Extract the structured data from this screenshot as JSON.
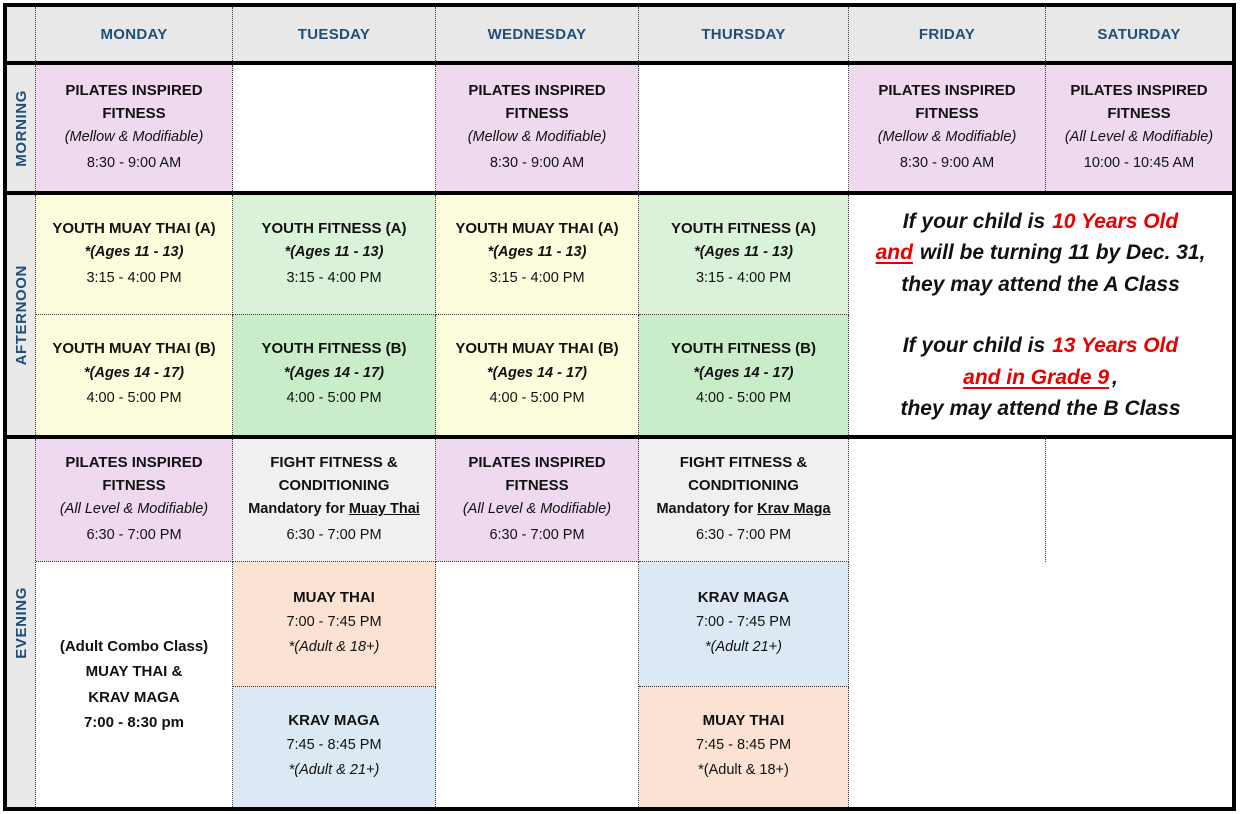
{
  "header": {
    "days": [
      "MONDAY",
      "TUESDAY",
      "WEDNESDAY",
      "THURSDAY",
      "FRIDAY",
      "SATURDAY"
    ]
  },
  "bands": {
    "morning": "MORNING",
    "afternoon": "AFTERNOON",
    "evening": "EVENING"
  },
  "cells": {
    "morning": {
      "mon": {
        "title": "PILATES INSPIRED FITNESS",
        "sub": "(Mellow & Modifiable)",
        "time": "8:30 - 9:00 AM"
      },
      "wed": {
        "title": "PILATES INSPIRED FITNESS",
        "sub": "(Mellow & Modifiable)",
        "time": "8:30 - 9:00 AM"
      },
      "fri": {
        "title": "PILATES INSPIRED FITNESS",
        "sub": "(Mellow & Modifiable)",
        "time": "8:30 - 9:00 AM"
      },
      "sat": {
        "title": "PILATES INSPIRED FITNESS",
        "sub": "(All Level & Modifiable)",
        "time": "10:00 - 10:45 AM"
      }
    },
    "afternoon": {
      "mon_a": {
        "title": "YOUTH MUAY THAI (A)",
        "ages": "*(Ages 11 - 13)",
        "time": "3:15 - 4:00 PM"
      },
      "mon_b": {
        "title": "YOUTH MUAY THAI (B)",
        "ages": "*(Ages 14 - 17)",
        "time": "4:00 - 5:00 PM"
      },
      "tue_a": {
        "title": "YOUTH FITNESS (A)",
        "ages": "*(Ages 11 - 13)",
        "time": "3:15 - 4:00 PM"
      },
      "tue_b": {
        "title": "YOUTH FITNESS (B)",
        "ages": "*(Ages 14 - 17)",
        "time": "4:00 - 5:00 PM"
      },
      "wed_a": {
        "title": "YOUTH MUAY THAI (A)",
        "ages": "*(Ages 11 - 13)",
        "time": "3:15 - 4:00 PM"
      },
      "wed_b": {
        "title": "YOUTH MUAY THAI (B)",
        "ages": "*(Ages 14 - 17)",
        "time": "4:00 - 5:00 PM"
      },
      "thu_a": {
        "title": "YOUTH FITNESS (A)",
        "ages": "*(Ages 11 - 13)",
        "time": "3:15 - 4:00 PM"
      },
      "thu_b": {
        "title": "YOUTH FITNESS (B)",
        "ages": "*(Ages 14 - 17)",
        "time": "4:00 - 5:00 PM"
      }
    },
    "evening": {
      "mon_pilates": {
        "title": "PILATES INSPIRED FITNESS",
        "sub": "(All Level & Modifiable)",
        "time": "6:30 - 7:00 PM"
      },
      "wed_pilates": {
        "title": "PILATES INSPIRED FITNESS",
        "sub": "(All Level & Modifiable)",
        "time": "6:30 - 7:00 PM"
      },
      "tue_fight": {
        "title": "FIGHT FITNESS & CONDITIONING",
        "mand_pre": "Mandatory for ",
        "mand_u": "Muay Thai",
        "time": "6:30 - 7:00 PM"
      },
      "thu_fight": {
        "title": "FIGHT FITNESS & CONDITIONING",
        "mand_pre": "Mandatory for ",
        "mand_u": "Krav Maga",
        "time": "6:30 - 7:00 PM"
      },
      "tue_muay": {
        "title": "MUAY THAI",
        "time": "7:00 - 7:45 PM",
        "note": "*(Adult & 18+)"
      },
      "tue_krav": {
        "title": "KRAV MAGA",
        "time": "7:45 - 8:45 PM",
        "note": "*(Adult & 21+)"
      },
      "thu_krav": {
        "title": "KRAV MAGA",
        "time": "7:00 - 7:45 PM",
        "note": "*(Adult 21+)"
      },
      "thu_muay": {
        "title": "MUAY THAI",
        "time": "7:45 - 8:45 PM",
        "note": "*(Adult & 18+)"
      },
      "mon_combo": {
        "l1": "(Adult Combo Class)",
        "l2": "MUAY THAI &",
        "l3": "KRAV MAGA",
        "l4": "7:00 - 8:30 pm"
      }
    },
    "note": {
      "a1_black": "If your child is",
      "a1_red": "10 Years Old",
      "a2_red": "and",
      "a2_black": "will be turning 11 by Dec. 31,",
      "a3": "they may attend the A Class",
      "b1_black": "If your child is",
      "b1_red": "13 Years Old",
      "b2_red": "and in Grade 9",
      "b2_black": ",",
      "b3": "they may attend the B Class"
    }
  },
  "colors": {
    "header_text": "#1F4E79",
    "header_bg": "#E8E8E8",
    "label_bg": "#E9E9E9",
    "pink": "#EFD9EF",
    "yellow": "#FDFCDC",
    "green_light": "#DAF2DA",
    "green": "#C9ECC9",
    "gray": "#F0F0F0",
    "peach": "#FBE2D2",
    "blue": "#DCE9F5",
    "red": "#E60000",
    "white": "#FFFFFF"
  }
}
